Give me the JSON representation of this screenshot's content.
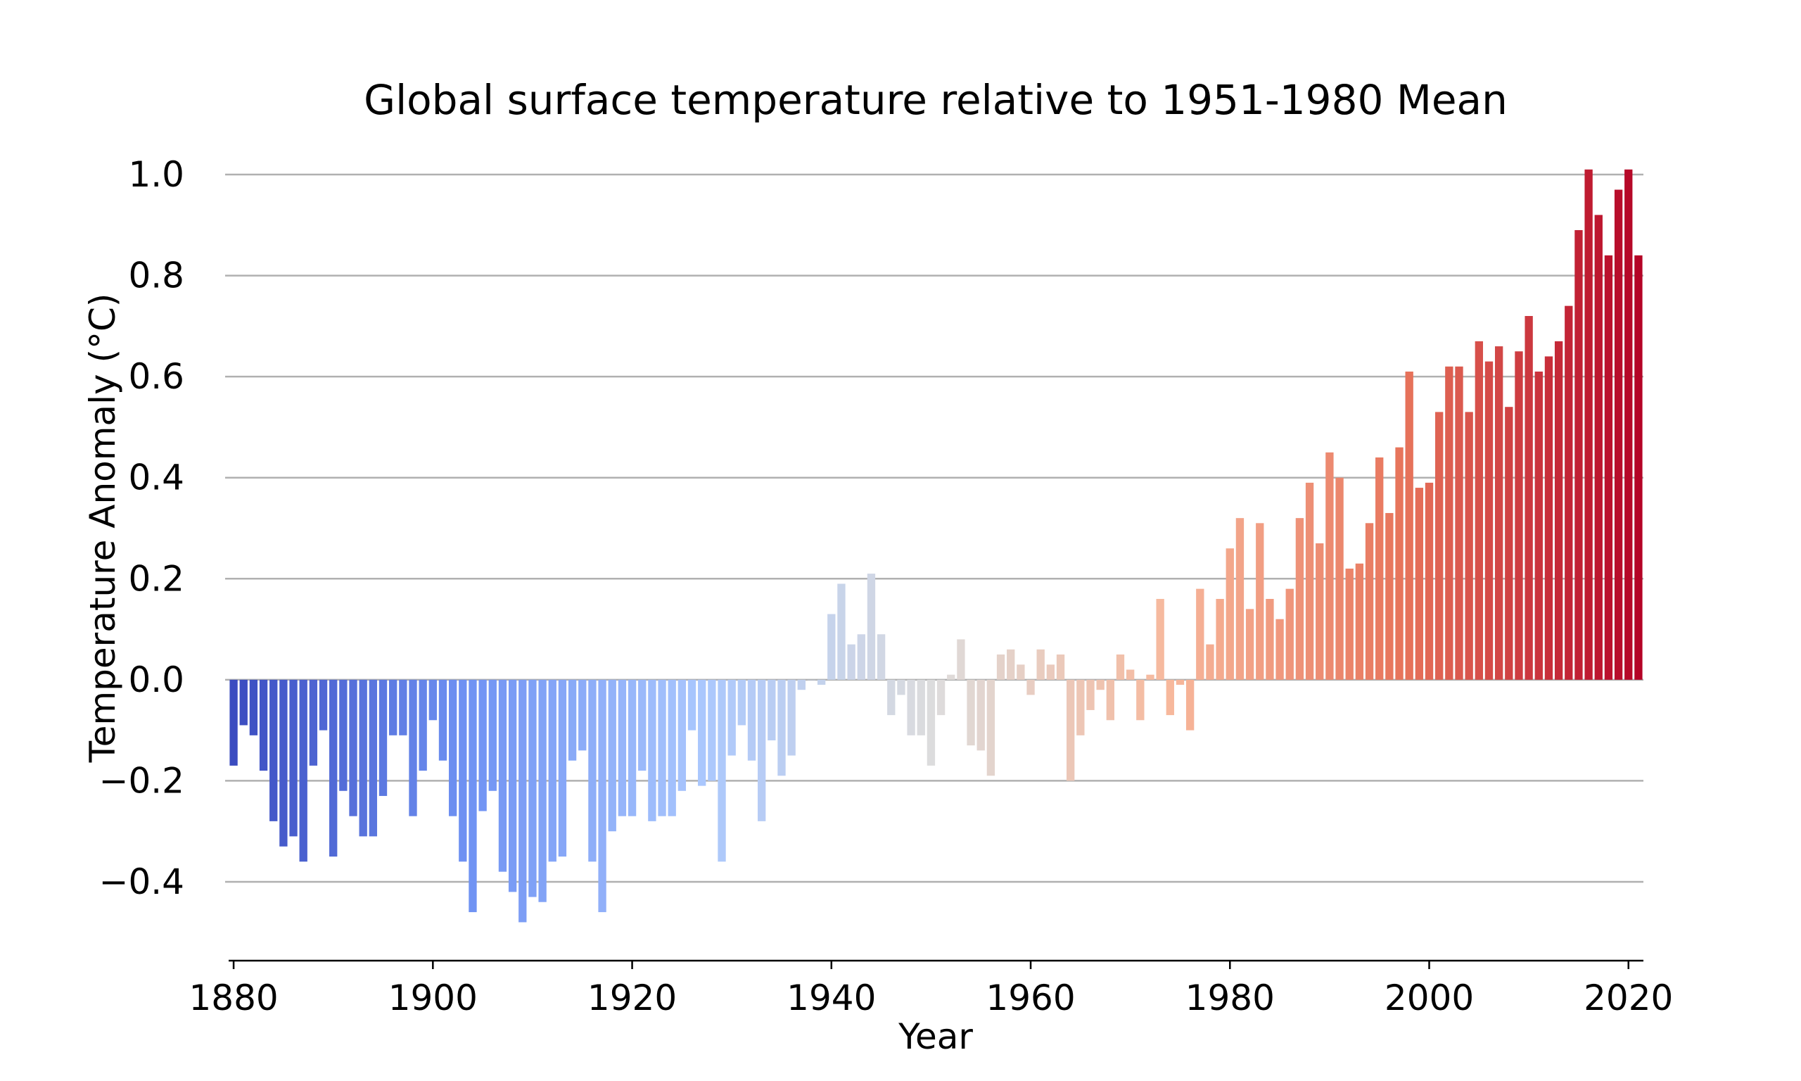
{
  "chart_data": {
    "type": "bar",
    "title": "Global surface temperature relative to 1951-1980 Mean",
    "xlabel": "Year",
    "ylabel": "Temperature Anomaly (°C)",
    "ylim": [
      -0.55,
      1.08
    ],
    "xlim": [
      1879.5,
      2021.5
    ],
    "yticks": [
      -0.4,
      -0.2,
      0.0,
      0.2,
      0.4,
      0.6,
      0.8,
      1.0
    ],
    "ytick_labels": [
      "−0.4",
      "−0.2",
      "0.0",
      "0.2",
      "0.4",
      "0.6",
      "0.8",
      "1.0"
    ],
    "xticks": [
      1880,
      1900,
      1920,
      1940,
      1960,
      1980,
      2000,
      2020
    ],
    "xtick_labels": [
      "1880",
      "1900",
      "1920",
      "1940",
      "1960",
      "1980",
      "2000",
      "2020"
    ],
    "grid": "horizontal",
    "colormap": "coolwarm",
    "colormap_stops": [
      "#3b4cc0",
      "#6f92f3",
      "#aac7fd",
      "#dddcdc",
      "#f7b89c",
      "#e7745b",
      "#b40426"
    ],
    "years": [
      1880,
      1881,
      1882,
      1883,
      1884,
      1885,
      1886,
      1887,
      1888,
      1889,
      1890,
      1891,
      1892,
      1893,
      1894,
      1895,
      1896,
      1897,
      1898,
      1899,
      1900,
      1901,
      1902,
      1903,
      1904,
      1905,
      1906,
      1907,
      1908,
      1909,
      1910,
      1911,
      1912,
      1913,
      1914,
      1915,
      1916,
      1917,
      1918,
      1919,
      1920,
      1921,
      1922,
      1923,
      1924,
      1925,
      1926,
      1927,
      1928,
      1929,
      1930,
      1931,
      1932,
      1933,
      1934,
      1935,
      1936,
      1937,
      1938,
      1939,
      1940,
      1941,
      1942,
      1943,
      1944,
      1945,
      1946,
      1947,
      1948,
      1949,
      1950,
      1951,
      1952,
      1953,
      1954,
      1955,
      1956,
      1957,
      1958,
      1959,
      1960,
      1961,
      1962,
      1963,
      1964,
      1965,
      1966,
      1967,
      1968,
      1969,
      1970,
      1971,
      1972,
      1973,
      1974,
      1975,
      1976,
      1977,
      1978,
      1979,
      1980,
      1981,
      1982,
      1983,
      1984,
      1985,
      1986,
      1987,
      1988,
      1989,
      1990,
      1991,
      1992,
      1993,
      1994,
      1995,
      1996,
      1997,
      1998,
      1999,
      2000,
      2001,
      2002,
      2003,
      2004,
      2005,
      2006,
      2007,
      2008,
      2009,
      2010,
      2011,
      2012,
      2013,
      2014,
      2015,
      2016,
      2017,
      2018,
      2019,
      2020,
      2021
    ],
    "values": [
      -0.17,
      -0.09,
      -0.11,
      -0.18,
      -0.28,
      -0.33,
      -0.31,
      -0.36,
      -0.17,
      -0.1,
      -0.35,
      -0.22,
      -0.27,
      -0.31,
      -0.31,
      -0.23,
      -0.11,
      -0.11,
      -0.27,
      -0.18,
      -0.08,
      -0.16,
      -0.27,
      -0.36,
      -0.46,
      -0.26,
      -0.22,
      -0.38,
      -0.42,
      -0.48,
      -0.43,
      -0.44,
      -0.36,
      -0.35,
      -0.16,
      -0.14,
      -0.36,
      -0.46,
      -0.3,
      -0.27,
      -0.27,
      -0.18,
      -0.28,
      -0.27,
      -0.27,
      -0.22,
      -0.1,
      -0.21,
      -0.2,
      -0.36,
      -0.15,
      -0.09,
      -0.16,
      -0.28,
      -0.12,
      -0.19,
      -0.15,
      -0.02,
      0.0,
      -0.01,
      0.13,
      0.19,
      0.07,
      0.09,
      0.21,
      0.09,
      -0.07,
      -0.03,
      -0.11,
      -0.11,
      -0.17,
      -0.07,
      0.01,
      0.08,
      -0.13,
      -0.14,
      -0.19,
      0.05,
      0.06,
      0.03,
      -0.03,
      0.06,
      0.03,
      0.05,
      -0.2,
      -0.11,
      -0.06,
      -0.02,
      -0.08,
      0.05,
      0.02,
      -0.08,
      0.01,
      0.16,
      -0.07,
      -0.01,
      -0.1,
      0.18,
      0.07,
      0.16,
      0.26,
      0.32,
      0.14,
      0.31,
      0.16,
      0.12,
      0.18,
      0.32,
      0.39,
      0.27,
      0.45,
      0.4,
      0.22,
      0.23,
      0.31,
      0.44,
      0.33,
      0.46,
      0.61,
      0.38,
      0.39,
      0.53,
      0.62,
      0.62,
      0.53,
      0.67,
      0.63,
      0.66,
      0.54,
      0.65,
      0.72,
      0.61,
      0.64,
      0.67,
      0.74,
      0.89,
      1.01,
      0.92,
      0.84,
      0.97,
      1.01,
      0.84
    ]
  }
}
